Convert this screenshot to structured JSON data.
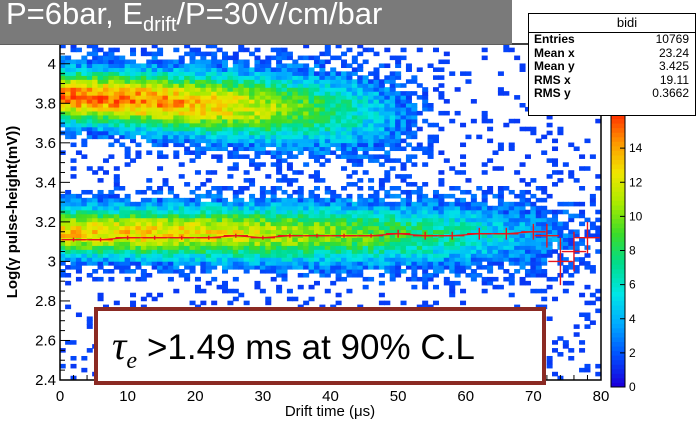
{
  "title": {
    "main": "P=6bar, E",
    "sub": "drift",
    "tail": "/P=30V/cm/bar"
  },
  "stats": {
    "name": "bidi",
    "rows": [
      {
        "key": "Entries",
        "value": "10769"
      },
      {
        "key": "Mean x",
        "value": "23.24"
      },
      {
        "key": "Mean y",
        "value": "3.425"
      },
      {
        "key": "RMS x",
        "value": "19.11"
      },
      {
        "key": "RMS y",
        "value": "0.3662"
      }
    ]
  },
  "annotation": {
    "tau": "τ",
    "sub": "e",
    "rest": ">1.49 ms at 90% C.L"
  },
  "colors": {
    "profile": "#e8141b",
    "annotation_border": "#8b2a23",
    "banner": "#7a7a7a"
  },
  "chart_data": {
    "type": "heatmap",
    "histogram_name": "bidi",
    "xlabel": "Drift time (μs)",
    "ylabel": "Log(γ pulse-height(mV))",
    "xlim": [
      0,
      80
    ],
    "ylim": [
      2.4,
      4.1
    ],
    "xticks": [
      0,
      10,
      20,
      30,
      40,
      50,
      60,
      70,
      80
    ],
    "yticks": [
      2.4,
      2.6,
      2.8,
      3,
      3.2,
      3.4,
      3.6,
      3.8,
      4
    ],
    "colorbar": {
      "min": 0,
      "max": 16,
      "ticks": [
        0,
        2,
        4,
        6,
        8,
        10,
        12,
        14
      ]
    },
    "bands": [
      {
        "name": "upper",
        "y_start": 3.84,
        "y_end": 3.74,
        "x_range": [
          0,
          50
        ],
        "peak_count": 15
      },
      {
        "name": "lower",
        "y_start": 3.15,
        "y_end": 3.13,
        "x_range": [
          0,
          75
        ],
        "peak_count": 13
      }
    ],
    "profile": {
      "x": [
        2,
        6,
        10,
        14,
        18,
        22,
        26,
        30,
        34,
        38,
        42,
        46,
        50,
        54,
        58,
        62,
        66,
        70,
        72,
        74,
        76,
        78
      ],
      "y": [
        3.11,
        3.11,
        3.12,
        3.12,
        3.12,
        3.12,
        3.13,
        3.12,
        3.13,
        3.13,
        3.13,
        3.13,
        3.14,
        3.13,
        3.13,
        3.14,
        3.14,
        3.15,
        3.13,
        3.0,
        3.05,
        3.12
      ],
      "err": [
        0.01,
        0.01,
        0.01,
        0.01,
        0.01,
        0.01,
        0.01,
        0.01,
        0.01,
        0.01,
        0.01,
        0.01,
        0.02,
        0.02,
        0.02,
        0.03,
        0.03,
        0.04,
        0.06,
        0.12,
        0.1,
        0.08
      ]
    }
  }
}
